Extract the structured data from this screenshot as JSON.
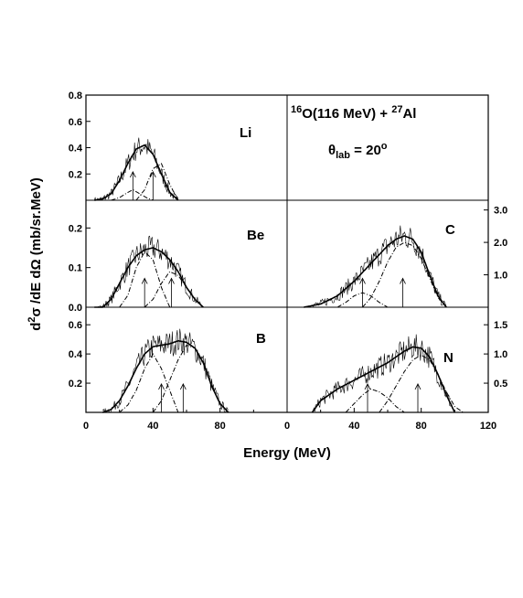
{
  "figure": {
    "xlabel": "Energy (MeV)",
    "ylabel_parts": {
      "pre": "d",
      "sup": "2",
      "post": "σ /dE dΩ (mb/sr.MeV)"
    },
    "reaction": {
      "a_sup": "16",
      "a": "O(116 MeV) + ",
      "b_sup": "27",
      "b": "Al"
    },
    "angle": {
      "sym": "θ",
      "sub": "lab",
      "eq": " = 20",
      "sup": "o"
    }
  },
  "chart_data": [
    {
      "type": "line",
      "panel": "Li",
      "xlim": [
        0,
        120
      ],
      "ylim": [
        0,
        0.8
      ],
      "yticks": [
        0.2,
        0.4,
        0.6,
        0.8
      ],
      "ytick_labels": [
        "0.2",
        "0.4",
        "0.6",
        "0.8"
      ],
      "series": [
        {
          "x": [
            5,
            10,
            15,
            20,
            25,
            30,
            35,
            40,
            45,
            50,
            55
          ],
          "values": [
            0.0,
            0.01,
            0.05,
            0.15,
            0.28,
            0.39,
            0.42,
            0.35,
            0.2,
            0.06,
            0.0
          ],
          "style": "solid"
        },
        {
          "x": [
            15,
            20,
            25,
            28,
            32,
            36,
            40
          ],
          "values": [
            0.0,
            0.02,
            0.06,
            0.08,
            0.05,
            0.02,
            0.0
          ],
          "style": "dashdot"
        },
        {
          "x": [
            30,
            35,
            40,
            45,
            50,
            55
          ],
          "values": [
            0.0,
            0.08,
            0.24,
            0.28,
            0.12,
            0.0
          ],
          "style": "dashdot"
        }
      ],
      "arrows": [
        28,
        40
      ]
    },
    {
      "type": "line",
      "panel": "Be",
      "xlim": [
        0,
        120
      ],
      "ylim": [
        0,
        0.27
      ],
      "yticks": [
        0.0,
        0.1,
        0.2
      ],
      "ytick_labels": [
        "0.0",
        "0.1",
        "0.2"
      ],
      "series": [
        {
          "x": [
            5,
            10,
            15,
            20,
            25,
            30,
            35,
            40,
            45,
            50,
            55,
            60,
            65,
            70
          ],
          "values": [
            0.0,
            0.0,
            0.02,
            0.06,
            0.1,
            0.13,
            0.145,
            0.15,
            0.14,
            0.12,
            0.09,
            0.05,
            0.02,
            0.0
          ],
          "style": "solid"
        },
        {
          "x": [
            20,
            25,
            30,
            35,
            40,
            45,
            50
          ],
          "values": [
            0.0,
            0.03,
            0.1,
            0.14,
            0.12,
            0.05,
            0.0
          ],
          "style": "dashdot"
        },
        {
          "x": [
            35,
            40,
            45,
            50,
            55,
            60,
            65,
            70
          ],
          "values": [
            0.0,
            0.02,
            0.06,
            0.09,
            0.08,
            0.05,
            0.02,
            0.0
          ],
          "style": "dashdot"
        }
      ],
      "arrows": [
        35,
        51
      ]
    },
    {
      "type": "line",
      "panel": "B",
      "xlim": [
        0,
        120
      ],
      "ylim": [
        0,
        0.72
      ],
      "yticks": [
        0.2,
        0.4,
        0.6
      ],
      "ytick_labels": [
        "0.2",
        "0.4",
        "0.6"
      ],
      "series": [
        {
          "x": [
            10,
            15,
            20,
            25,
            30,
            35,
            40,
            45,
            50,
            55,
            60,
            65,
            70,
            75,
            80,
            85
          ],
          "values": [
            0.0,
            0.02,
            0.08,
            0.18,
            0.3,
            0.4,
            0.45,
            0.46,
            0.47,
            0.49,
            0.48,
            0.44,
            0.34,
            0.18,
            0.06,
            0.0
          ],
          "style": "solid"
        },
        {
          "x": [
            20,
            25,
            30,
            35,
            40,
            45,
            50,
            55
          ],
          "values": [
            0.0,
            0.05,
            0.15,
            0.3,
            0.4,
            0.3,
            0.15,
            0.0
          ],
          "style": "dashdot"
        },
        {
          "x": [
            40,
            45,
            50,
            55,
            60,
            65,
            70,
            75,
            80,
            85
          ],
          "values": [
            0.0,
            0.08,
            0.22,
            0.36,
            0.46,
            0.44,
            0.34,
            0.18,
            0.06,
            0.0
          ],
          "style": "dashdot"
        }
      ],
      "arrows": [
        45,
        58
      ]
    },
    {
      "type": "line",
      "panel": "C",
      "xlim": [
        0,
        120
      ],
      "ylim": [
        0,
        3.3
      ],
      "yticks": [
        1.0,
        2.0,
        3.0
      ],
      "ytick_labels": [
        "1.0",
        "2.0",
        "3.0"
      ],
      "series": [
        {
          "x": [
            10,
            20,
            30,
            40,
            50,
            60,
            65,
            70,
            75,
            80,
            85,
            90,
            95
          ],
          "values": [
            0.0,
            0.1,
            0.35,
            0.8,
            1.35,
            1.9,
            2.1,
            2.2,
            2.1,
            1.7,
            1.0,
            0.35,
            0.0
          ],
          "style": "solid"
        },
        {
          "x": [
            30,
            35,
            40,
            45,
            50,
            55,
            60
          ],
          "values": [
            0.0,
            0.15,
            0.35,
            0.45,
            0.35,
            0.15,
            0.0
          ],
          "style": "dashdot"
        },
        {
          "x": [
            45,
            50,
            55,
            60,
            65,
            70,
            75,
            80,
            85,
            90,
            95
          ],
          "values": [
            0.0,
            0.3,
            0.8,
            1.4,
            1.85,
            2.0,
            1.9,
            1.5,
            0.9,
            0.3,
            0.0
          ],
          "style": "dashdot"
        }
      ],
      "arrows": [
        45,
        69
      ]
    },
    {
      "type": "line",
      "panel": "N",
      "xlim": [
        0,
        120
      ],
      "ylim": [
        0,
        1.8
      ],
      "yticks": [
        0.5,
        1.0,
        1.5
      ],
      "ytick_labels": [
        "0.5",
        "1.0",
        "1.5"
      ],
      "series": [
        {
          "x": [
            15,
            20,
            30,
            40,
            50,
            60,
            70,
            75,
            80,
            85,
            90,
            95,
            100
          ],
          "values": [
            0.0,
            0.2,
            0.4,
            0.55,
            0.7,
            0.85,
            1.05,
            1.12,
            1.1,
            0.95,
            0.65,
            0.3,
            0.0
          ],
          "style": "solid"
        },
        {
          "x": [
            35,
            40,
            45,
            50,
            55,
            60,
            65,
            70
          ],
          "values": [
            0.0,
            0.15,
            0.3,
            0.4,
            0.35,
            0.25,
            0.1,
            0.0
          ],
          "style": "dashdot"
        },
        {
          "x": [
            55,
            60,
            65,
            70,
            75,
            80,
            85,
            90,
            95,
            100,
            105
          ],
          "values": [
            0.0,
            0.2,
            0.45,
            0.7,
            0.9,
            0.98,
            0.9,
            0.65,
            0.35,
            0.1,
            0.0
          ],
          "style": "dashdot"
        }
      ],
      "arrows": [
        48,
        78
      ]
    }
  ],
  "x_ticks_left": [
    "0",
    "40",
    "80"
  ],
  "x_ticks_right": [
    "0",
    "40",
    "80",
    "120"
  ]
}
